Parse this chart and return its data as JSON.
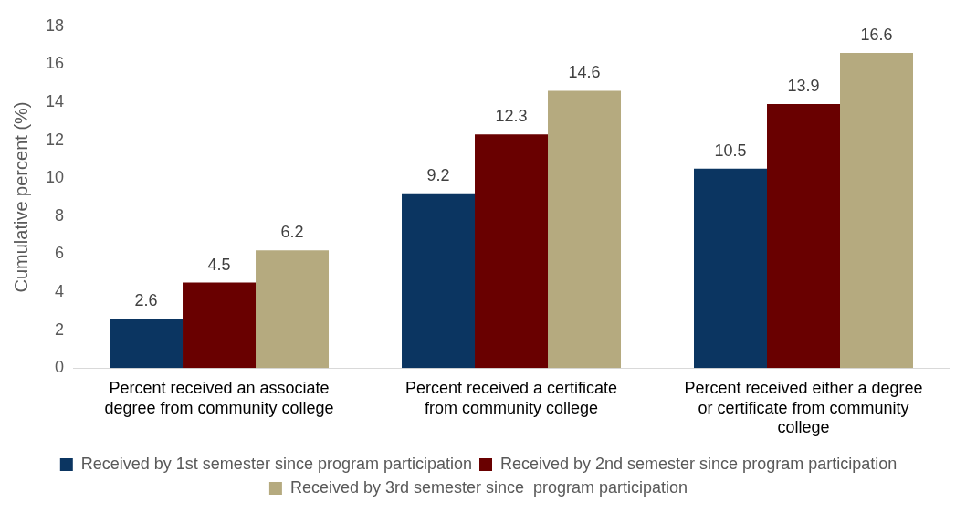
{
  "chart_data": {
    "type": "bar",
    "ylabel": "Cumulative percent (%)",
    "categories": [
      "Percent received an associate degree from community college",
      "Percent received a certificate from community college",
      "Percent received either a degree or certificate from community college"
    ],
    "series": [
      {
        "name": "Received by 1st semester since program participation",
        "color": "#0b3561",
        "values": [
          2.6,
          9.2,
          10.5
        ]
      },
      {
        "name": "Received by 2nd semester since program participation",
        "color": "#690000",
        "values": [
          4.5,
          12.3,
          13.9
        ]
      },
      {
        "name": "Received by 3rd semester since  program participation",
        "color": "#b5aa7f",
        "values": [
          6.2,
          14.6,
          16.6
        ]
      }
    ],
    "ylim": [
      0,
      18
    ],
    "yticks": [
      0,
      2,
      4,
      6,
      8,
      10,
      12,
      14,
      16,
      18
    ],
    "grid": false,
    "legend": "bottom",
    "data_labels": true
  }
}
